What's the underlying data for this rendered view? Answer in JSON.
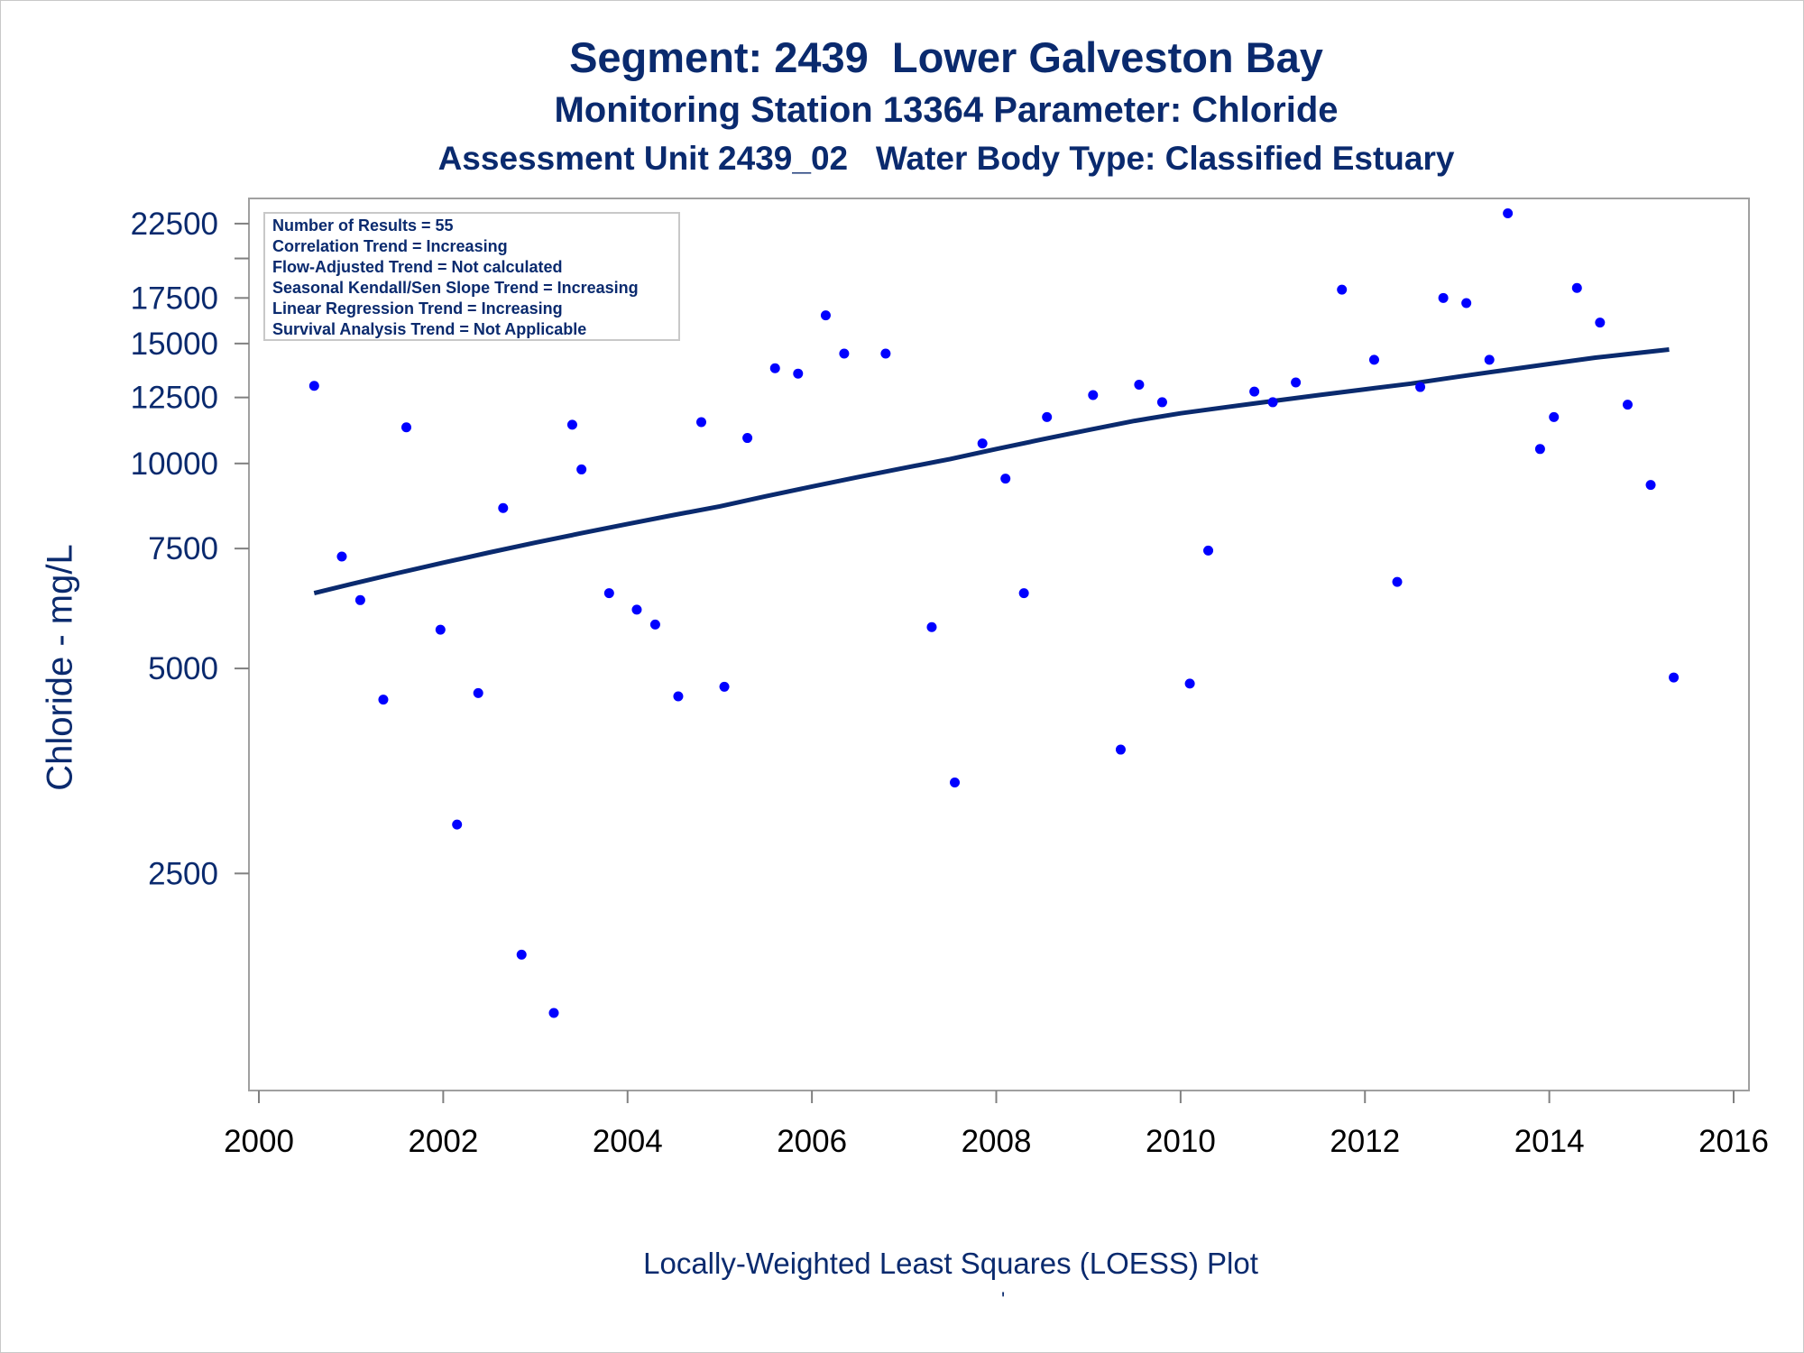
{
  "chart_data": {
    "type": "scatter",
    "title": "Segment: 2439  Lower Galveston Bay",
    "subtitle": "Monitoring Station 13364 Parameter: Chloride",
    "subtitle2": "Assessment Unit 2439_02   Water Body Type: Classified Estuary",
    "xlabel": "Locally-Weighted Least Squares (LOESS) Plot",
    "footer_mark": "'",
    "ylabel": "Chloride - mg/L",
    "yscale": "log",
    "xlim": [
      2000,
      2016
    ],
    "ylim": [
      1200,
      24500
    ],
    "xticks": [
      2000,
      2002,
      2004,
      2006,
      2008,
      2010,
      2012,
      2014,
      2016
    ],
    "yticks": [
      2500,
      5000,
      7500,
      10000,
      12500,
      15000,
      17500,
      22500
    ],
    "yticks_minor": [
      20000
    ],
    "legend_position": "top-left",
    "stats": [
      "Number of Results = 55",
      "Correlation Trend = Increasing",
      "Flow-Adjusted Trend = Not calculated",
      "Seasonal Kendall/Sen Slope Trend = Increasing",
      "Linear Regression Trend = Increasing",
      "Survival Analysis Trend = Not Applicable"
    ],
    "points_color": "#0000ff",
    "line_color": "#0a2a6e",
    "series": [
      {
        "type": "scatter",
        "points": [
          [
            2000.6,
            13000
          ],
          [
            2000.9,
            7300
          ],
          [
            2001.1,
            6300
          ],
          [
            2001.35,
            4500
          ],
          [
            2001.6,
            11300
          ],
          [
            2001.97,
            5700
          ],
          [
            2002.15,
            2950
          ],
          [
            2002.38,
            4600
          ],
          [
            2002.65,
            8600
          ],
          [
            2002.85,
            1900
          ],
          [
            2003.2,
            1560
          ],
          [
            2003.4,
            11400
          ],
          [
            2003.5,
            9800
          ],
          [
            2003.8,
            6450
          ],
          [
            2004.1,
            6100
          ],
          [
            2004.3,
            5800
          ],
          [
            2004.55,
            4550
          ],
          [
            2004.8,
            11500
          ],
          [
            2005.05,
            4700
          ],
          [
            2005.3,
            10900
          ],
          [
            2005.6,
            13800
          ],
          [
            2005.85,
            13550
          ],
          [
            2006.15,
            16500
          ],
          [
            2006.35,
            14500
          ],
          [
            2006.8,
            14500
          ],
          [
            2007.3,
            5750
          ],
          [
            2007.55,
            3400
          ],
          [
            2007.85,
            10700
          ],
          [
            2008.1,
            9500
          ],
          [
            2008.3,
            6450
          ],
          [
            2008.55,
            11700
          ],
          [
            2009.05,
            12600
          ],
          [
            2009.35,
            3800
          ],
          [
            2009.55,
            13050
          ],
          [
            2009.8,
            12300
          ],
          [
            2010.1,
            4750
          ],
          [
            2010.3,
            7450
          ],
          [
            2010.8,
            12750
          ],
          [
            2011.0,
            12300
          ],
          [
            2011.25,
            13150
          ],
          [
            2011.75,
            18000
          ],
          [
            2012.1,
            14200
          ],
          [
            2012.35,
            6700
          ],
          [
            2012.6,
            12950
          ],
          [
            2012.85,
            17500
          ],
          [
            2013.1,
            17200
          ],
          [
            2013.35,
            14200
          ],
          [
            2013.55,
            23300
          ],
          [
            2013.9,
            10500
          ],
          [
            2014.05,
            11700
          ],
          [
            2014.3,
            18100
          ],
          [
            2014.55,
            16100
          ],
          [
            2014.85,
            12200
          ],
          [
            2015.1,
            9300
          ],
          [
            2015.35,
            4850
          ]
        ]
      },
      {
        "type": "line",
        "points": [
          [
            2000.6,
            6450
          ],
          [
            2001.0,
            6650
          ],
          [
            2001.5,
            6900
          ],
          [
            2002.0,
            7150
          ],
          [
            2002.5,
            7400
          ],
          [
            2003.0,
            7650
          ],
          [
            2003.5,
            7900
          ],
          [
            2004.0,
            8150
          ],
          [
            2004.5,
            8400
          ],
          [
            2005.0,
            8650
          ],
          [
            2005.5,
            8950
          ],
          [
            2006.0,
            9250
          ],
          [
            2006.5,
            9550
          ],
          [
            2007.0,
            9850
          ],
          [
            2007.5,
            10150
          ],
          [
            2008.0,
            10500
          ],
          [
            2008.5,
            10850
          ],
          [
            2009.0,
            11200
          ],
          [
            2009.5,
            11550
          ],
          [
            2010.0,
            11850
          ],
          [
            2010.5,
            12100
          ],
          [
            2011.0,
            12350
          ],
          [
            2011.5,
            12600
          ],
          [
            2012.0,
            12850
          ],
          [
            2012.5,
            13100
          ],
          [
            2013.0,
            13400
          ],
          [
            2013.5,
            13700
          ],
          [
            2014.0,
            14000
          ],
          [
            2014.5,
            14300
          ],
          [
            2015.0,
            14550
          ],
          [
            2015.3,
            14700
          ]
        ]
      }
    ]
  }
}
